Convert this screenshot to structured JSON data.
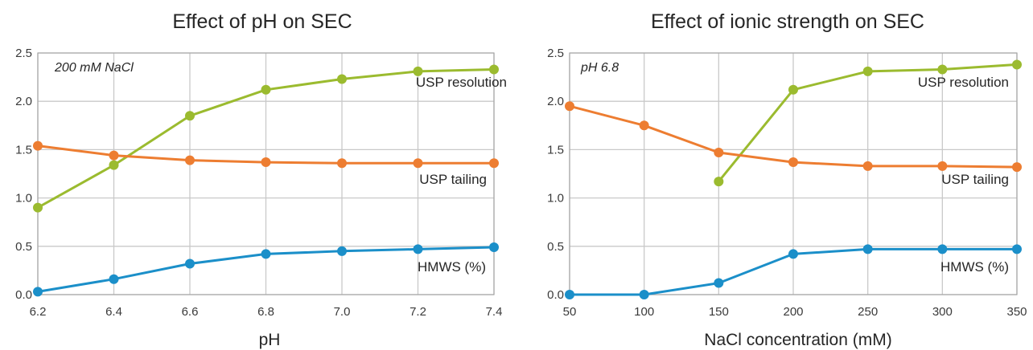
{
  "chart_data": [
    {
      "type": "line",
      "title": "Effect of pH on SEC",
      "xlabel": "pH",
      "ylabel": "",
      "annotation": "200 mM NaCl",
      "x": [
        6.2,
        6.4,
        6.6,
        6.8,
        7.0,
        7.2,
        7.4
      ],
      "xticks": [
        "6.2",
        "6.4",
        "6.6",
        "6.8",
        "7.0",
        "7.2",
        "7.4"
      ],
      "xlim": [
        6.2,
        7.4
      ],
      "ylim": [
        0,
        2.5
      ],
      "yticks": [
        "0.0",
        "0.5",
        "1.0",
        "1.5",
        "2.0",
        "2.5"
      ],
      "grid": true,
      "series": [
        {
          "name": "USP resolution",
          "color": "#9bbb2f",
          "x": [
            6.2,
            6.4,
            6.6,
            6.8,
            7.0,
            7.2,
            7.4
          ],
          "values": [
            0.9,
            1.34,
            1.85,
            2.12,
            2.23,
            2.31,
            2.33
          ]
        },
        {
          "name": "USP tailing",
          "color": "#ed7d31",
          "x": [
            6.2,
            6.4,
            6.6,
            6.8,
            7.0,
            7.2,
            7.4
          ],
          "values": [
            1.54,
            1.44,
            1.39,
            1.37,
            1.36,
            1.36,
            1.36
          ]
        },
        {
          "name": "HMWS (%)",
          "color": "#1b8fc9",
          "x": [
            6.2,
            6.4,
            6.6,
            6.8,
            7.0,
            7.2,
            7.4
          ],
          "values": [
            0.03,
            0.16,
            0.32,
            0.42,
            0.45,
            0.47,
            0.49
          ]
        }
      ]
    },
    {
      "type": "line",
      "title": "Effect of ionic strength on SEC",
      "xlabel": "NaCl concentration (mM)",
      "ylabel": "",
      "annotation": "pH 6.8",
      "x": [
        50,
        100,
        150,
        200,
        250,
        300,
        350
      ],
      "xticks": [
        "50",
        "100",
        "150",
        "200",
        "250",
        "300",
        "350"
      ],
      "xlim": [
        50,
        350
      ],
      "ylim": [
        0,
        2.5
      ],
      "yticks": [
        "0.0",
        "0.5",
        "1.0",
        "1.5",
        "2.0",
        "2.5"
      ],
      "grid": true,
      "series": [
        {
          "name": "USP resolution",
          "color": "#9bbb2f",
          "x": [
            150,
            200,
            250,
            300,
            350
          ],
          "values": [
            1.17,
            2.12,
            2.31,
            2.33,
            2.38
          ]
        },
        {
          "name": "USP tailing",
          "color": "#ed7d31",
          "x": [
            50,
            100,
            150,
            200,
            250,
            300,
            350
          ],
          "values": [
            1.95,
            1.75,
            1.47,
            1.37,
            1.33,
            1.33,
            1.32
          ]
        },
        {
          "name": "HMWS (%)",
          "color": "#1b8fc9",
          "x": [
            50,
            100,
            150,
            200,
            250,
            300,
            350
          ],
          "values": [
            0.0,
            0.0,
            0.12,
            0.42,
            0.47,
            0.47,
            0.47
          ]
        }
      ]
    }
  ]
}
